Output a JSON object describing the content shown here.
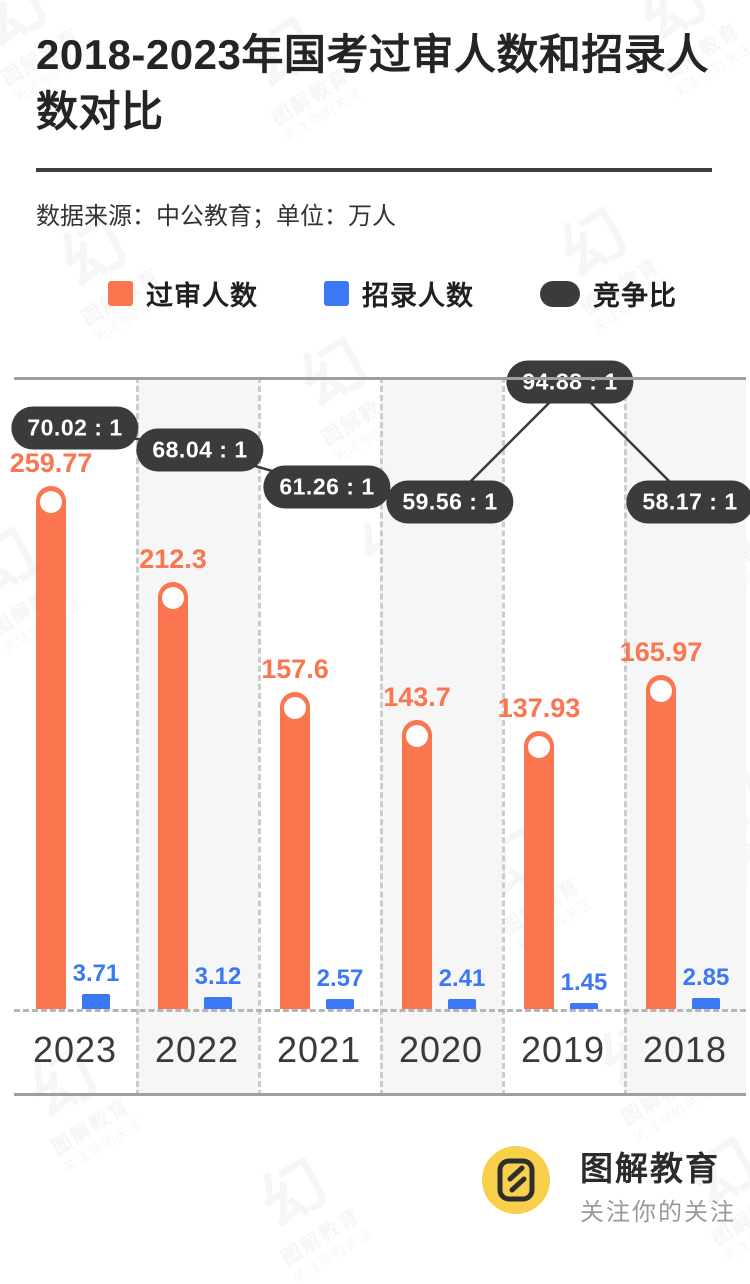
{
  "page": {
    "title": "2018-2023年国考过审人数和招录人数对比",
    "source_note": "数据来源：中公教育；单位：万人"
  },
  "legend": {
    "items": [
      {
        "label": "过审人数",
        "color": "#f9764f",
        "shape": "square"
      },
      {
        "label": "招录人数",
        "color": "#3a78f5",
        "shape": "square"
      },
      {
        "label": "竞争比",
        "color": "#3b3b3b",
        "shape": "pill"
      }
    ]
  },
  "chart_data": {
    "type": "bar",
    "title": "2018-2023年国考过审人数和招录人数对比",
    "unit": "万人",
    "categories": [
      "2023",
      "2022",
      "2021",
      "2020",
      "2019",
      "2018"
    ],
    "series": [
      {
        "name": "过审人数",
        "type": "bar",
        "color": "#f9764f",
        "values": [
          259.77,
          212.3,
          157.6,
          143.7,
          137.93,
          165.97
        ]
      },
      {
        "name": "招录人数",
        "type": "bar",
        "color": "#3a78f5",
        "values": [
          3.71,
          3.12,
          2.57,
          2.41,
          1.45,
          2.85
        ]
      },
      {
        "name": "竞争比",
        "type": "label-line",
        "color": "#3b3b3b",
        "values": [
          70.02,
          68.04,
          61.26,
          59.56,
          94.88,
          58.17
        ],
        "labels": [
          "70.02 : 1",
          "68.04 : 1",
          "61.26 : 1",
          "59.56 : 1",
          "94.88 : 1",
          "58.17 : 1"
        ]
      }
    ],
    "legend_position": "top",
    "grid": "vertical-dashed",
    "baseline_style": "dashed",
    "shaded_columns": [
      "2022",
      "2020",
      "2018"
    ],
    "colors": {
      "approved": "#f9764f",
      "recruited": "#3a78f5",
      "ratio_pill": "#3b3b3b",
      "axis_line": "#9aa0a5",
      "grid_dash": "#cccccc"
    }
  },
  "footer": {
    "brand": "图解教育",
    "tagline": "关注你的关注",
    "logo_color": "#f8d04c"
  },
  "watermark": {
    "text": "图解教育",
    "subtext": "关注你的关注"
  }
}
